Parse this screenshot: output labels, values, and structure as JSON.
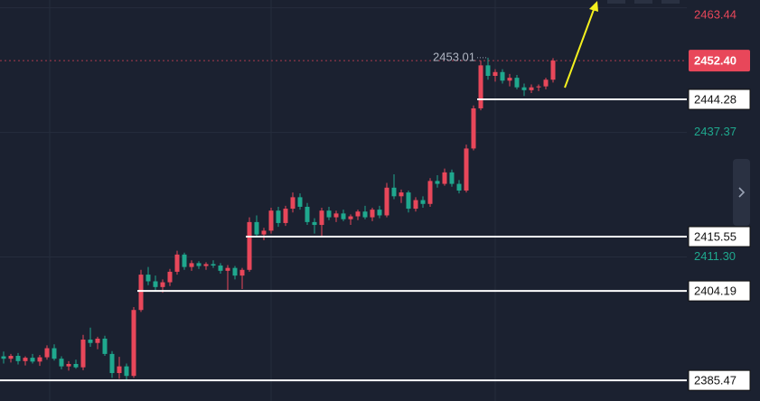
{
  "chart_data": {
    "type": "candlestick",
    "ylim": [
      2381.15,
      2465.08
    ],
    "up_color": "#e8475a",
    "down_color": "#1fa88e",
    "candles": [
      [
        2390.5,
        2391.5,
        2389.0,
        2390.0
      ],
      [
        2390.0,
        2391.0,
        2389.2,
        2390.6
      ],
      [
        2390.6,
        2391.2,
        2388.8,
        2389.5
      ],
      [
        2389.5,
        2390.5,
        2388.6,
        2390.2
      ],
      [
        2390.2,
        2391.0,
        2389.0,
        2389.4
      ],
      [
        2389.4,
        2390.8,
        2388.5,
        2390.3
      ],
      [
        2390.3,
        2392.8,
        2389.8,
        2392.2
      ],
      [
        2392.2,
        2393.0,
        2389.6,
        2390.0
      ],
      [
        2390.0,
        2390.5,
        2387.8,
        2388.4
      ],
      [
        2388.4,
        2389.5,
        2387.5,
        2388.9
      ],
      [
        2388.9,
        2389.8,
        2387.9,
        2388.2
      ],
      [
        2388.2,
        2395.0,
        2387.6,
        2394.0
      ],
      [
        2394.0,
        2396.5,
        2392.5,
        2393.3
      ],
      [
        2393.3,
        2394.6,
        2392.0,
        2394.2
      ],
      [
        2394.2,
        2394.8,
        2390.6,
        2391.0
      ],
      [
        2391.0,
        2391.6,
        2386.0,
        2387.0
      ],
      [
        2387.0,
        2390.4,
        2385.8,
        2388.4
      ],
      [
        2388.4,
        2389.0,
        2385.6,
        2386.4
      ],
      [
        2386.4,
        2400.8,
        2386.0,
        2400.2
      ],
      [
        2400.2,
        2408.6,
        2399.8,
        2407.6
      ],
      [
        2407.6,
        2409.2,
        2405.4,
        2406.2
      ],
      [
        2406.2,
        2407.4,
        2404.2,
        2405.0
      ],
      [
        2405.0,
        2406.6,
        2403.8,
        2406.0
      ],
      [
        2406.0,
        2408.8,
        2405.2,
        2408.2
      ],
      [
        2408.2,
        2412.6,
        2407.6,
        2411.8
      ],
      [
        2411.8,
        2412.2,
        2408.6,
        2409.2
      ],
      [
        2409.2,
        2410.6,
        2408.4,
        2410.0
      ],
      [
        2410.0,
        2410.4,
        2408.8,
        2409.4
      ],
      [
        2409.4,
        2410.2,
        2408.6,
        2409.8
      ],
      [
        2409.8,
        2410.6,
        2409.0,
        2409.5
      ],
      [
        2409.5,
        2410.0,
        2407.8,
        2408.4
      ],
      [
        2408.4,
        2409.6,
        2404.4,
        2409.0
      ],
      [
        2409.0,
        2409.4,
        2406.6,
        2407.4
      ],
      [
        2407.4,
        2409.0,
        2404.6,
        2408.6
      ],
      [
        2408.6,
        2419.6,
        2408.2,
        2418.6
      ],
      [
        2418.6,
        2420.0,
        2415.4,
        2416.0
      ],
      [
        2416.0,
        2417.4,
        2414.8,
        2416.8
      ],
      [
        2416.8,
        2421.6,
        2416.2,
        2421.0
      ],
      [
        2421.0,
        2421.8,
        2417.6,
        2418.4
      ],
      [
        2418.4,
        2422.0,
        2417.8,
        2421.4
      ],
      [
        2421.4,
        2424.8,
        2420.6,
        2423.8
      ],
      [
        2423.8,
        2424.6,
        2421.2,
        2421.8
      ],
      [
        2421.8,
        2422.6,
        2418.0,
        2418.6
      ],
      [
        2418.6,
        2419.4,
        2416.2,
        2418.0
      ],
      [
        2418.0,
        2421.6,
        2415.6,
        2421.0
      ],
      [
        2421.0,
        2421.8,
        2419.0,
        2419.6
      ],
      [
        2419.6,
        2421.0,
        2418.6,
        2420.4
      ],
      [
        2420.4,
        2421.2,
        2418.8,
        2419.2
      ],
      [
        2419.2,
        2420.2,
        2418.0,
        2419.8
      ],
      [
        2419.8,
        2421.2,
        2419.0,
        2420.8
      ],
      [
        2420.8,
        2422.0,
        2419.2,
        2419.6
      ],
      [
        2419.6,
        2421.6,
        2418.8,
        2421.2
      ],
      [
        2421.2,
        2422.0,
        2419.4,
        2420.0
      ],
      [
        2420.0,
        2426.8,
        2419.6,
        2425.8
      ],
      [
        2425.8,
        2428.6,
        2423.4,
        2424.0
      ],
      [
        2424.0,
        2425.4,
        2422.6,
        2424.8
      ],
      [
        2424.8,
        2425.2,
        2420.6,
        2421.4
      ],
      [
        2421.4,
        2423.8,
        2420.8,
        2423.2
      ],
      [
        2423.2,
        2424.0,
        2421.6,
        2422.4
      ],
      [
        2422.4,
        2427.8,
        2421.8,
        2427.2
      ],
      [
        2427.2,
        2428.4,
        2425.8,
        2426.6
      ],
      [
        2426.6,
        2429.8,
        2426.2,
        2429.0
      ],
      [
        2429.0,
        2429.6,
        2426.0,
        2426.6
      ],
      [
        2426.6,
        2427.4,
        2424.6,
        2425.2
      ],
      [
        2425.2,
        2434.8,
        2424.8,
        2434.0
      ],
      [
        2434.0,
        2443.0,
        2433.6,
        2442.4
      ],
      [
        2442.4,
        2452.4,
        2442.0,
        2451.4
      ],
      [
        2451.4,
        2453.01,
        2448.4,
        2449.2
      ],
      [
        2449.2,
        2450.6,
        2448.0,
        2450.0
      ],
      [
        2450.0,
        2450.6,
        2447.6,
        2448.2
      ],
      [
        2448.2,
        2449.6,
        2447.0,
        2448.8
      ],
      [
        2448.8,
        2449.4,
        2446.4,
        2446.8
      ],
      [
        2446.8,
        2447.6,
        2445.0,
        2446.2
      ],
      [
        2446.2,
        2447.4,
        2445.6,
        2446.8
      ],
      [
        2446.8,
        2447.4,
        2446.0,
        2447.0
      ],
      [
        2447.0,
        2448.8,
        2446.4,
        2448.4
      ],
      [
        2448.4,
        2452.9,
        2447.8,
        2452.4
      ]
    ],
    "yticks": [
      2463.44,
      2437.37,
      {
        "value": 2411.3,
        "label": "2411.30"
      }
    ],
    "ytick_colors": [
      "#e8475a",
      "#1fa88e",
      "#1fa88e"
    ],
    "last_price": {
      "value": 2452.4,
      "label": "2452.40"
    },
    "high_annotation": 2453.01,
    "levels": [
      2444.28,
      2415.55,
      2404.19,
      2385.47
    ]
  }
}
